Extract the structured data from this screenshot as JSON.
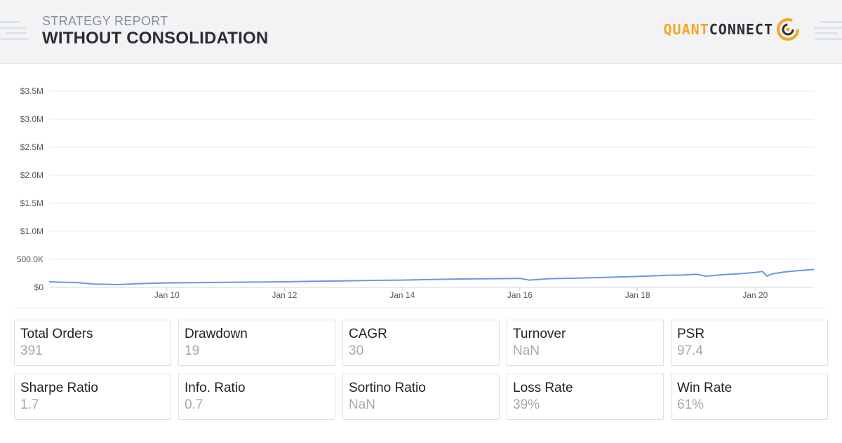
{
  "header": {
    "subtitle": "STRATEGY REPORT",
    "title": "WITHOUT CONSOLIDATION",
    "logo_part1": "QUANT",
    "logo_part2": "CONNECT",
    "logo_icon": "quantconnect-ring-icon"
  },
  "colors": {
    "accent": "#f5a623",
    "line": "#6b96e6",
    "header_bg": "#f2f3f5"
  },
  "chart_data": {
    "type": "line",
    "title": "",
    "xlabel": "",
    "ylabel": "",
    "grid": true,
    "ylim": [
      0,
      3500000
    ],
    "y_ticks": [
      0,
      500000,
      1000000,
      1500000,
      2000000,
      2500000,
      3000000,
      3500000
    ],
    "y_tick_labels": [
      "$0",
      "500.0K",
      "$1.0M",
      "$1.5M",
      "$2.0M",
      "$2.5M",
      "$3.0M",
      "$3.5M"
    ],
    "xlim": [
      "2008-01-01",
      "2020-12-31"
    ],
    "x_ticks": [
      "2010-01-01",
      "2012-01-01",
      "2014-01-01",
      "2016-01-01",
      "2018-01-01",
      "2020-01-01"
    ],
    "x_tick_labels": [
      "Jan 10",
      "Jan 12",
      "Jan 14",
      "Jan 16",
      "Jan 18",
      "Jan 20"
    ],
    "series": [
      {
        "x": [
          "2008-01-01",
          "2008-04-01",
          "2008-07-01",
          "2008-10-01",
          "2009-01-01",
          "2009-03-01",
          "2009-07-01",
          "2010-01-01",
          "2010-07-01",
          "2011-01-01",
          "2011-07-01",
          "2012-01-01",
          "2012-07-01",
          "2013-01-01",
          "2013-07-01",
          "2014-01-01",
          "2014-07-01",
          "2015-01-01",
          "2015-07-01",
          "2016-01-01",
          "2016-03-01",
          "2016-07-01",
          "2017-01-01",
          "2017-07-01",
          "2018-01-01",
          "2018-07-01",
          "2018-10-01",
          "2019-01-01",
          "2019-03-01",
          "2019-07-01",
          "2019-10-01",
          "2020-01-01",
          "2020-02-15",
          "2020-03-15",
          "2020-04-15",
          "2020-07-01",
          "2020-10-01",
          "2020-12-31"
        ],
        "values": [
          100000,
          90000,
          85000,
          60000,
          55000,
          50000,
          65000,
          80000,
          85000,
          90000,
          95000,
          100000,
          110000,
          115000,
          125000,
          130000,
          140000,
          150000,
          155000,
          160000,
          130000,
          155000,
          165000,
          180000,
          195000,
          215000,
          220000,
          235000,
          200000,
          230000,
          245000,
          265000,
          285000,
          200000,
          240000,
          275000,
          300000,
          320000
        ]
      }
    ]
  },
  "stats": [
    {
      "label": "Total Orders",
      "value": "391"
    },
    {
      "label": "Drawdown",
      "value": "19"
    },
    {
      "label": "CAGR",
      "value": "30"
    },
    {
      "label": "Turnover",
      "value": "NaN"
    },
    {
      "label": "PSR",
      "value": "97.4"
    },
    {
      "label": "Sharpe Ratio",
      "value": "1.7"
    },
    {
      "label": "Info. Ratio",
      "value": "0.7"
    },
    {
      "label": "Sortino Ratio",
      "value": "NaN"
    },
    {
      "label": "Loss Rate",
      "value": "39%"
    },
    {
      "label": "Win Rate",
      "value": "61%"
    }
  ]
}
